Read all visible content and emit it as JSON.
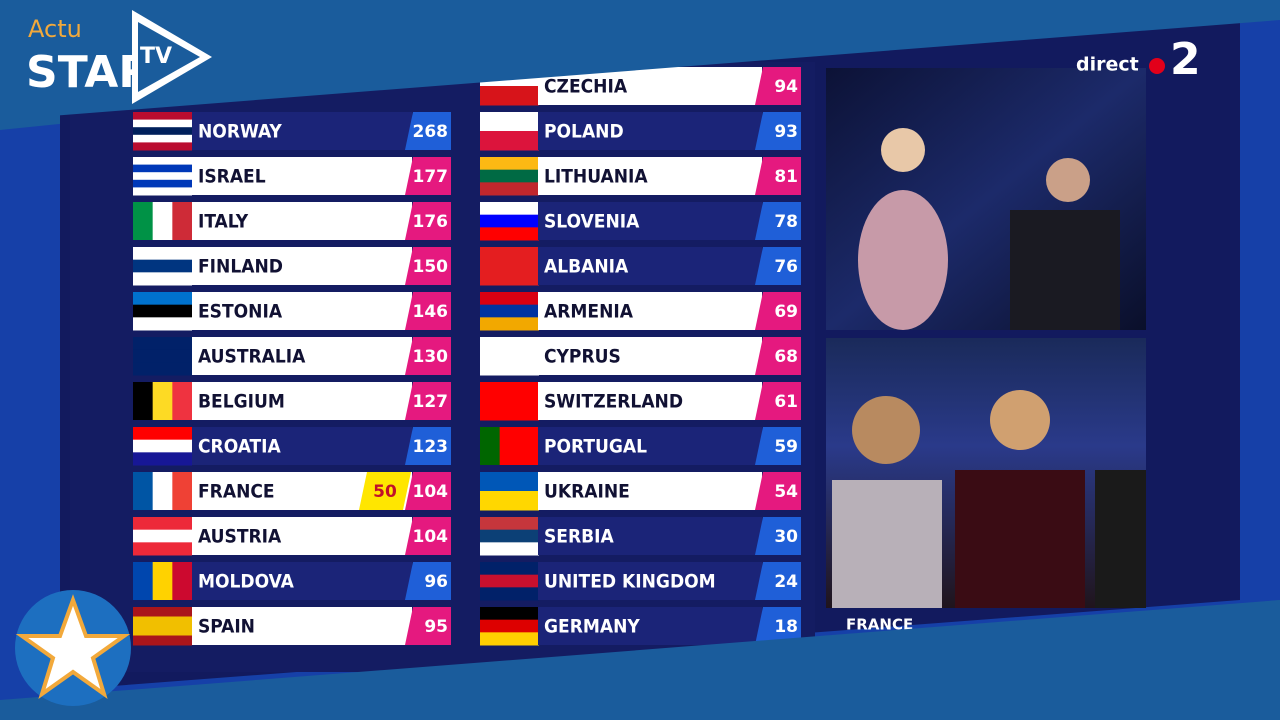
{
  "logo": {
    "actu": "Actu",
    "star": "STAR",
    "tv": "TV"
  },
  "channel": {
    "live": "direct",
    "number": "2"
  },
  "video": {
    "caption": "FRANCE"
  },
  "scoreboard": {
    "left": [
      {
        "country": "NORWAY",
        "points": 268,
        "lit": false,
        "flag": [
          "#ba0c2f",
          "#ffffff",
          "#00205b",
          "#ffffff",
          "#ba0c2f"
        ]
      },
      {
        "country": "ISRAEL",
        "points": 177,
        "lit": true,
        "flag": [
          "#ffffff",
          "#0038b8",
          "#ffffff",
          "#0038b8",
          "#ffffff"
        ]
      },
      {
        "country": "ITALY",
        "points": 176,
        "lit": true,
        "flag": [
          "#009246",
          "#ffffff",
          "#ce2b37"
        ],
        "vertical": true
      },
      {
        "country": "FINLAND",
        "points": 150,
        "lit": true,
        "flag": [
          "#ffffff",
          "#003580",
          "#ffffff"
        ]
      },
      {
        "country": "ESTONIA",
        "points": 146,
        "lit": true,
        "flag": [
          "#0072ce",
          "#000000",
          "#ffffff"
        ]
      },
      {
        "country": "AUSTRALIA",
        "points": 130,
        "lit": true,
        "flag": [
          "#012169",
          "#012169",
          "#012169"
        ]
      },
      {
        "country": "BELGIUM",
        "points": 127,
        "lit": true,
        "flag": [
          "#000000",
          "#fdda24",
          "#ef3340"
        ],
        "vertical": true
      },
      {
        "country": "CROATIA",
        "points": 123,
        "lit": false,
        "flag": [
          "#ff0000",
          "#ffffff",
          "#171796"
        ]
      },
      {
        "country": "FRANCE",
        "points": 104,
        "jury": 50,
        "lit": true,
        "flag": [
          "#0055a4",
          "#ffffff",
          "#ef4135"
        ],
        "vertical": true
      },
      {
        "country": "AUSTRIA",
        "points": 104,
        "lit": true,
        "flag": [
          "#ed2939",
          "#ffffff",
          "#ed2939"
        ]
      },
      {
        "country": "MOLDOVA",
        "points": 96,
        "lit": false,
        "flag": [
          "#0046ae",
          "#ffd200",
          "#cc092f"
        ],
        "vertical": true
      },
      {
        "country": "SPAIN",
        "points": 95,
        "lit": true,
        "flag": [
          "#aa151b",
          "#f1bf00",
          "#f1bf00",
          "#aa151b"
        ]
      }
    ],
    "right": [
      {
        "country": "CZECHIA",
        "points": 94,
        "lit": true,
        "flag": [
          "#ffffff",
          "#d7141a"
        ]
      },
      {
        "country": "POLAND",
        "points": 93,
        "lit": false,
        "flag": [
          "#ffffff",
          "#dc143c"
        ]
      },
      {
        "country": "LITHUANIA",
        "points": 81,
        "lit": true,
        "flag": [
          "#fdb913",
          "#006a44",
          "#c1272d"
        ]
      },
      {
        "country": "SLOVENIA",
        "points": 78,
        "lit": false,
        "flag": [
          "#ffffff",
          "#0000ff",
          "#ff0000"
        ]
      },
      {
        "country": "ALBANIA",
        "points": 76,
        "lit": false,
        "flag": [
          "#e41e20"
        ]
      },
      {
        "country": "ARMENIA",
        "points": 69,
        "lit": true,
        "flag": [
          "#d90012",
          "#0033a0",
          "#f2a800"
        ]
      },
      {
        "country": "CYPRUS",
        "points": 68,
        "lit": true,
        "flag": [
          "#ffffff"
        ]
      },
      {
        "country": "SWITZERLAND",
        "points": 61,
        "lit": true,
        "flag": [
          "#ff0000"
        ]
      },
      {
        "country": "PORTUGAL",
        "points": 59,
        "lit": false,
        "flag": [
          "#006600",
          "#ff0000",
          "#ff0000"
        ],
        "vertical": true
      },
      {
        "country": "UKRAINE",
        "points": 54,
        "lit": true,
        "flag": [
          "#0057b7",
          "#ffd700"
        ]
      },
      {
        "country": "SERBIA",
        "points": 30,
        "lit": false,
        "flag": [
          "#c6363c",
          "#0c4076",
          "#ffffff"
        ]
      },
      {
        "country": "UNITED KINGDOM",
        "points": 24,
        "lit": false,
        "flag": [
          "#012169",
          "#c8102e",
          "#012169"
        ]
      },
      {
        "country": "GERMANY",
        "points": 18,
        "lit": false,
        "flag": [
          "#000000",
          "#dd0000",
          "#ffce00"
        ]
      }
    ]
  }
}
